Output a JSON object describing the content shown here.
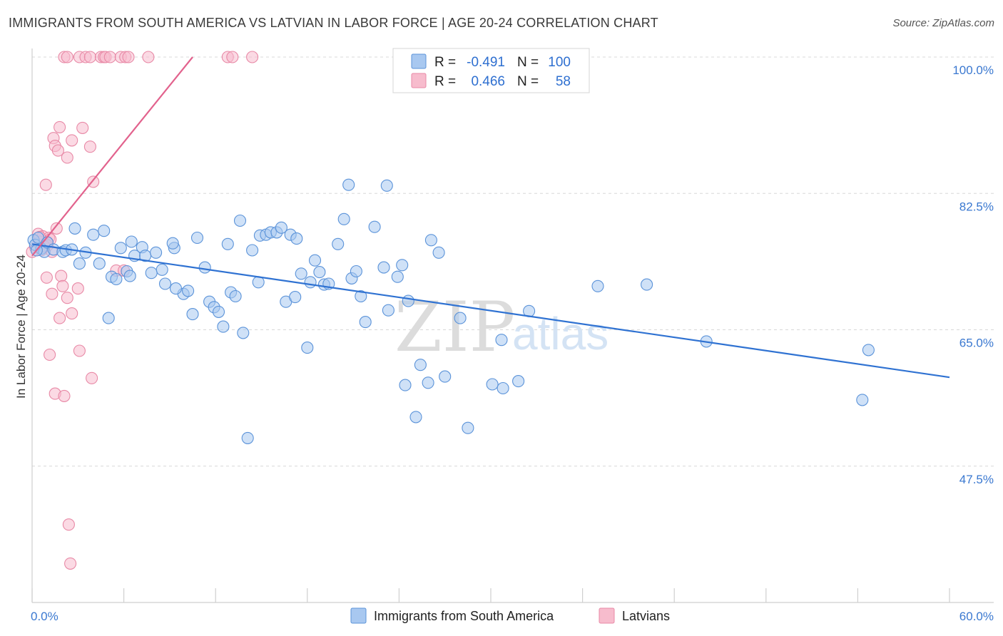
{
  "title": "IMMIGRANTS FROM SOUTH AMERICA VS LATVIAN IN LABOR FORCE | AGE 20-24 CORRELATION CHART",
  "source": "Source: ZipAtlas.com",
  "watermark": {
    "zip": "ZIP",
    "atlas": "atlas"
  },
  "colors": {
    "blue_fill": "#a8c8f0",
    "blue_stroke": "#5b93d9",
    "blue_line": "#2f72d2",
    "pink_fill": "#f7bccd",
    "pink_stroke": "#e889a6",
    "pink_line": "#e2628d",
    "tick_text": "#3a78d0",
    "grid": "#d8d8d8"
  },
  "legend": {
    "rows": [
      {
        "series": "blue",
        "r_label": "R =",
        "r_value": "-0.491",
        "n_label": "N =",
        "n_value": "100"
      },
      {
        "series": "pink",
        "r_label": "R =",
        "r_value": "0.466",
        "n_label": "N =",
        "n_value": "58"
      }
    ]
  },
  "chart_data": {
    "type": "scatter",
    "title": "IMMIGRANTS FROM SOUTH AMERICA VS LATVIAN IN LABOR FORCE | AGE 20-24 CORRELATION CHART",
    "xlabel": "",
    "ylabel": "In Labor Force | Age 20-24",
    "xlim": [
      0,
      60
    ],
    "ylim": [
      30,
      102
    ],
    "x_tick_labels": [
      "0.0%",
      "60.0%"
    ],
    "y_ticks": [
      47.5,
      65.0,
      82.5,
      100.0
    ],
    "y_tick_labels": [
      "47.5%",
      "65.0%",
      "82.5%",
      "100.0%"
    ],
    "x_minor_ticks": [
      0,
      6,
      12,
      18,
      24,
      30,
      36,
      42,
      48,
      54,
      60
    ],
    "series": [
      {
        "name": "Immigrants from South America",
        "color_key": "blue",
        "trend": {
          "x": [
            0,
            60
          ],
          "y": [
            76.0,
            58.9
          ]
        },
        "points": [
          [
            0.1,
            76.5
          ],
          [
            0.2,
            75.9
          ],
          [
            0.4,
            76.8
          ],
          [
            0.6,
            75.4
          ],
          [
            0.8,
            75.0
          ],
          [
            1.0,
            76.2
          ],
          [
            1.4,
            75.3
          ],
          [
            2.0,
            75.0
          ],
          [
            2.2,
            75.2
          ],
          [
            2.6,
            75.3
          ],
          [
            2.8,
            78.0
          ],
          [
            3.1,
            73.5
          ],
          [
            3.5,
            74.9
          ],
          [
            4.0,
            77.2
          ],
          [
            4.4,
            73.5
          ],
          [
            4.7,
            77.7
          ],
          [
            5.0,
            66.5
          ],
          [
            5.2,
            71.8
          ],
          [
            5.5,
            71.5
          ],
          [
            5.8,
            75.5
          ],
          [
            6.2,
            72.5
          ],
          [
            6.5,
            76.3
          ],
          [
            6.7,
            74.5
          ],
          [
            7.2,
            75.6
          ],
          [
            7.4,
            74.5
          ],
          [
            7.8,
            72.3
          ],
          [
            8.1,
            74.9
          ],
          [
            8.5,
            72.7
          ],
          [
            8.7,
            70.9
          ],
          [
            9.3,
            75.5
          ],
          [
            9.2,
            76.1
          ],
          [
            9.9,
            69.6
          ],
          [
            10.2,
            70.0
          ],
          [
            10.5,
            67.0
          ],
          [
            10.8,
            76.8
          ],
          [
            11.3,
            73.0
          ],
          [
            11.6,
            68.6
          ],
          [
            11.9,
            67.9
          ],
          [
            12.2,
            67.3
          ],
          [
            12.5,
            65.4
          ],
          [
            12.8,
            76.0
          ],
          [
            13.0,
            69.8
          ],
          [
            13.3,
            69.3
          ],
          [
            13.6,
            79.0
          ],
          [
            13.8,
            64.6
          ],
          [
            14.1,
            51.1
          ],
          [
            14.4,
            75.2
          ],
          [
            14.8,
            71.1
          ],
          [
            14.9,
            77.1
          ],
          [
            15.3,
            77.2
          ],
          [
            15.6,
            77.5
          ],
          [
            16.0,
            77.5
          ],
          [
            16.3,
            78.1
          ],
          [
            16.6,
            68.6
          ],
          [
            16.9,
            77.2
          ],
          [
            17.2,
            69.2
          ],
          [
            17.3,
            76.7
          ],
          [
            17.6,
            72.2
          ],
          [
            18.0,
            62.7
          ],
          [
            18.2,
            71.1
          ],
          [
            18.5,
            73.9
          ],
          [
            18.8,
            72.4
          ],
          [
            19.1,
            70.8
          ],
          [
            19.4,
            70.9
          ],
          [
            20.0,
            76.0
          ],
          [
            20.4,
            79.2
          ],
          [
            20.7,
            83.6
          ],
          [
            20.9,
            71.6
          ],
          [
            21.2,
            72.5
          ],
          [
            21.5,
            69.3
          ],
          [
            21.8,
            66.0
          ],
          [
            22.4,
            78.2
          ],
          [
            23.0,
            73.0
          ],
          [
            23.2,
            83.5
          ],
          [
            23.3,
            67.5
          ],
          [
            23.9,
            71.8
          ],
          [
            24.2,
            73.3
          ],
          [
            24.4,
            57.9
          ],
          [
            24.6,
            68.7
          ],
          [
            25.1,
            53.8
          ],
          [
            25.4,
            60.5
          ],
          [
            25.9,
            58.2
          ],
          [
            26.1,
            76.5
          ],
          [
            26.6,
            74.9
          ],
          [
            27.0,
            59.0
          ],
          [
            28.5,
            52.4
          ],
          [
            30.1,
            58.0
          ],
          [
            30.7,
            63.7
          ],
          [
            30.8,
            57.5
          ],
          [
            31.8,
            58.4
          ],
          [
            32.5,
            67.4
          ],
          [
            37.0,
            70.6
          ],
          [
            40.2,
            70.8
          ],
          [
            44.1,
            63.5
          ],
          [
            54.7,
            62.4
          ],
          [
            54.3,
            56.0
          ],
          [
            28.0,
            66.5
          ],
          [
            9.4,
            70.3
          ],
          [
            6.4,
            71.9
          ],
          [
            0.3,
            75.2
          ]
        ]
      },
      {
        "name": "Latvians",
        "color_key": "pink",
        "trend": {
          "x": [
            0,
            10.5
          ],
          "y": [
            74.5,
            100.0
          ]
        },
        "points": [
          [
            2.1,
            100.0
          ],
          [
            2.3,
            100.0
          ],
          [
            3.1,
            100.0
          ],
          [
            3.5,
            100.0
          ],
          [
            3.8,
            100.0
          ],
          [
            4.5,
            100.0
          ],
          [
            4.7,
            100.0
          ],
          [
            4.8,
            100.0
          ],
          [
            5.1,
            100.0
          ],
          [
            5.8,
            100.0
          ],
          [
            6.1,
            100.0
          ],
          [
            6.3,
            100.0
          ],
          [
            7.6,
            100.0
          ],
          [
            12.8,
            100.0
          ],
          [
            13.1,
            100.0
          ],
          [
            14.4,
            100.0
          ],
          [
            1.8,
            91.0
          ],
          [
            3.3,
            90.9
          ],
          [
            1.4,
            89.6
          ],
          [
            2.6,
            89.3
          ],
          [
            1.5,
            88.6
          ],
          [
            1.7,
            88.0
          ],
          [
            3.8,
            88.5
          ],
          [
            2.3,
            87.1
          ],
          [
            4.0,
            84.0
          ],
          [
            0.9,
            83.6
          ],
          [
            1.6,
            78.0
          ],
          [
            0.4,
            77.3
          ],
          [
            0.7,
            77.0
          ],
          [
            1.1,
            76.8
          ],
          [
            1.2,
            76.6
          ],
          [
            0.5,
            76.3
          ],
          [
            0.9,
            76.0
          ],
          [
            1.0,
            75.8
          ],
          [
            0.2,
            75.6
          ],
          [
            0.6,
            75.2
          ],
          [
            1.3,
            75.0
          ],
          [
            0.0,
            75.0
          ],
          [
            0.95,
            71.7
          ],
          [
            1.9,
            71.9
          ],
          [
            5.5,
            72.6
          ],
          [
            6.0,
            72.6
          ],
          [
            2.0,
            70.6
          ],
          [
            3.0,
            70.3
          ],
          [
            1.3,
            69.6
          ],
          [
            2.3,
            69.1
          ],
          [
            2.6,
            67.1
          ],
          [
            1.8,
            66.5
          ],
          [
            3.1,
            62.3
          ],
          [
            1.15,
            61.8
          ],
          [
            3.9,
            58.8
          ],
          [
            1.5,
            56.8
          ],
          [
            2.1,
            56.5
          ],
          [
            2.4,
            40.0
          ],
          [
            2.5,
            35.0
          ],
          [
            0.5,
            76.9
          ],
          [
            0.8,
            75.7
          ],
          [
            1.0,
            76.2
          ]
        ]
      }
    ],
    "legend_position": "top-center",
    "grid": true
  }
}
